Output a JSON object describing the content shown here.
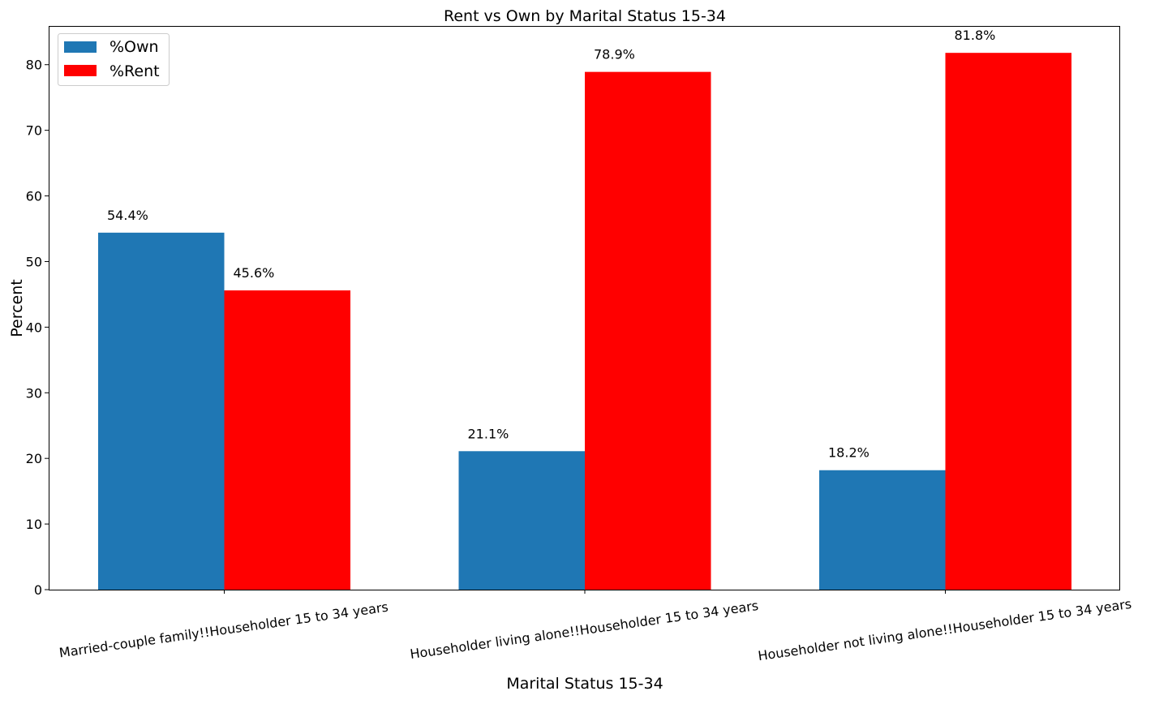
{
  "chart_data": {
    "type": "bar",
    "title": "Rent vs Own by Marital Status 15-34",
    "xlabel": "Marital Status 15-34",
    "ylabel": "Percent",
    "categories": [
      "Married-couple family!!Householder 15 to 34 years",
      "Householder living alone!!Householder 15 to 34 years",
      "Householder not living alone!!Householder 15 to 34 years"
    ],
    "series": [
      {
        "name": "%Own",
        "color": "#1f77b4",
        "values": [
          54.4,
          21.1,
          18.2
        ],
        "labels": [
          "54.4%",
          "21.1%",
          "18.2%"
        ]
      },
      {
        "name": "%Rent",
        "color": "#ff0000",
        "values": [
          45.6,
          78.9,
          81.8
        ],
        "labels": [
          "45.6%",
          "78.9%",
          "81.8%"
        ]
      }
    ],
    "ylim": [
      0,
      85.9
    ],
    "yticks": [
      0,
      10,
      20,
      30,
      40,
      50,
      60,
      70,
      80
    ],
    "ytick_labels": [
      "0",
      "10",
      "20",
      "30",
      "40",
      "50",
      "60",
      "70",
      "80"
    ],
    "xtick_rotation_deg": -8,
    "grid": false,
    "legend_position": "top-left"
  }
}
